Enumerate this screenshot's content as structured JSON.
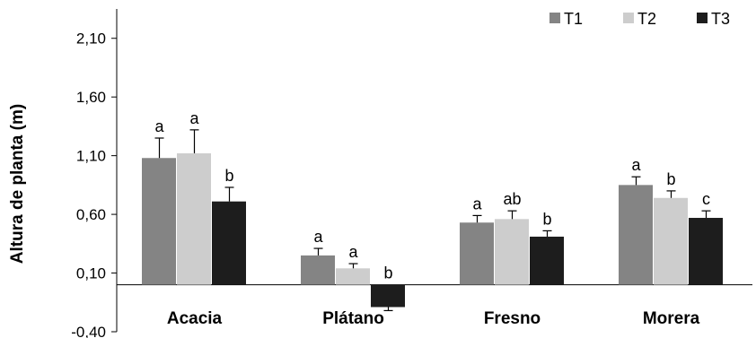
{
  "chart_data": {
    "type": "bar",
    "ylabel": "Altura de planta (m)",
    "ylim": [
      -0.4,
      2.35
    ],
    "yticks": [
      "2,10",
      "1,60",
      "1,10",
      "0,60",
      "0,10",
      "-0,40"
    ],
    "ytick_values": [
      2.1,
      1.6,
      1.1,
      0.6,
      0.1,
      -0.4
    ],
    "categories": [
      "Acacia",
      "Plátano",
      "Fresno",
      "Morera"
    ],
    "legend_position": "top-right",
    "series": [
      {
        "name": "T1",
        "color": "#848484",
        "values": [
          1.08,
          0.25,
          0.53,
          0.85
        ],
        "errors": [
          0.17,
          0.06,
          0.06,
          0.07
        ],
        "labels": [
          "a",
          "a",
          "a",
          "a"
        ]
      },
      {
        "name": "T2",
        "color": "#cdcdcd",
        "values": [
          1.12,
          0.14,
          0.56,
          0.74
        ],
        "errors": [
          0.2,
          0.04,
          0.07,
          0.06
        ],
        "labels": [
          "a",
          "a",
          "ab",
          "b"
        ]
      },
      {
        "name": "T3",
        "color": "#1d1d1d",
        "values": [
          0.71,
          -0.19,
          0.41,
          0.57
        ],
        "errors": [
          0.12,
          0.03,
          0.05,
          0.06
        ],
        "labels": [
          "b",
          "b",
          "b",
          "c"
        ]
      }
    ]
  }
}
